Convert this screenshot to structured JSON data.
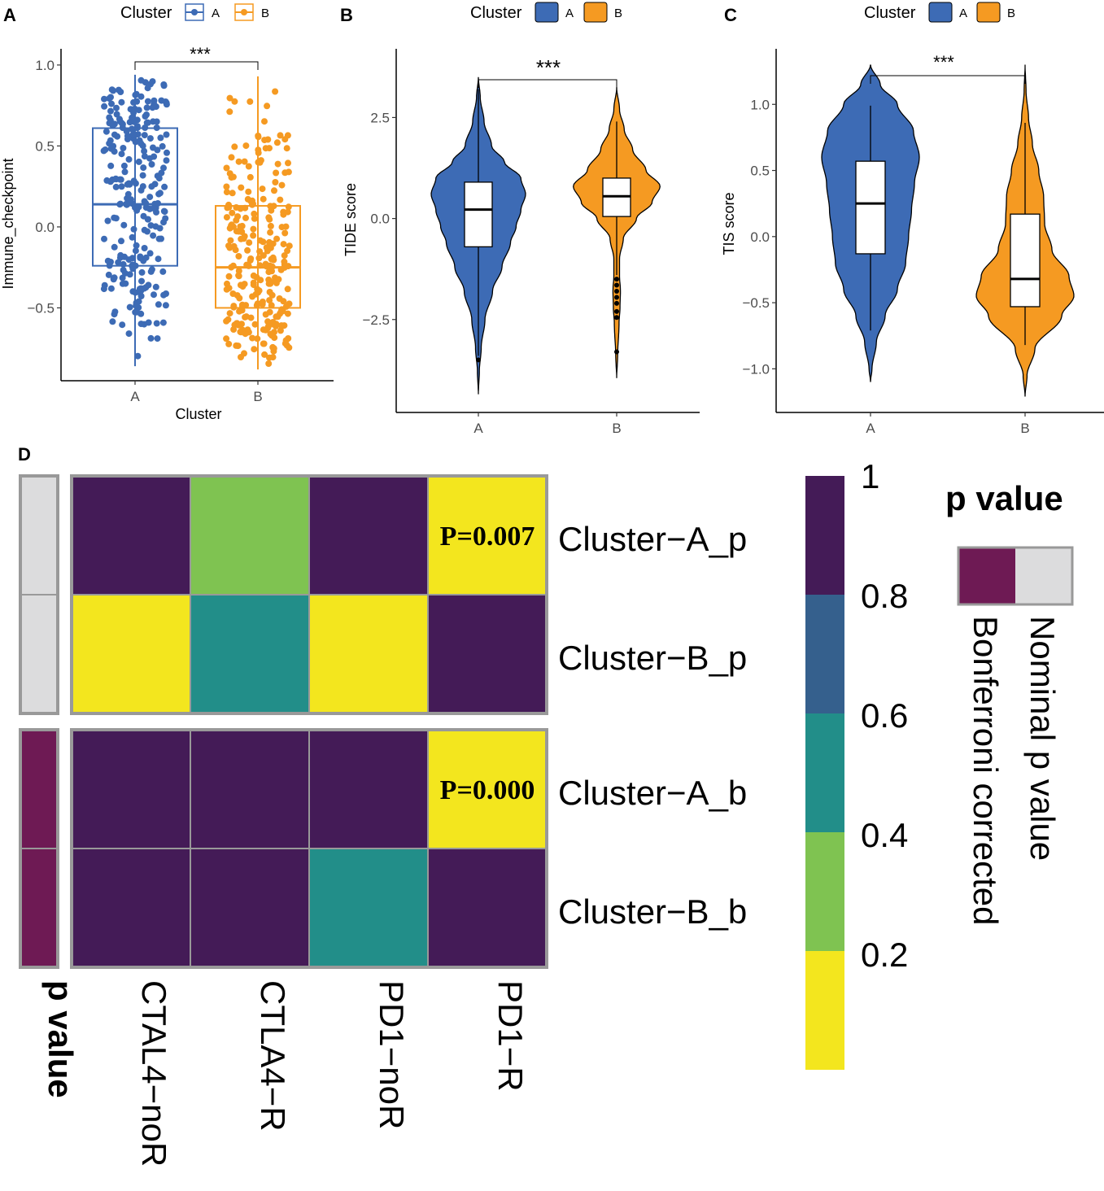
{
  "colors": {
    "clusterA": "#3d6bb5",
    "clusterB": "#f59a22",
    "viridis": [
      "#f3e61e",
      "#7fc351",
      "#228e89",
      "#35608d",
      "#441b57"
    ],
    "bonferroni": "#6e1a54",
    "nominal": "#dcdcdd",
    "frame": "#999999"
  },
  "panels": {
    "A": {
      "label": "A",
      "legend": {
        "title": "Cluster",
        "items": [
          "A",
          "B"
        ]
      },
      "significance": "***",
      "chart_data": {
        "type": "boxplot+jitter",
        "xlabel": "Cluster",
        "ylabel": "Immune_checkpoint",
        "categories": [
          "A",
          "B"
        ],
        "ylim": [
          -0.95,
          1.1
        ],
        "yticks": [
          -0.5,
          0.0,
          0.5,
          1.0
        ],
        "ytick_labels": [
          "−0.5",
          "0.0",
          "0.5",
          "1.0"
        ],
        "boxes": [
          {
            "q1": -0.24,
            "median": 0.14,
            "q3": 0.61,
            "whisker_low": -0.86,
            "whisker_high": 0.94,
            "point_range": [
              -0.88,
              0.95
            ]
          },
          {
            "q1": -0.5,
            "median": -0.25,
            "q3": 0.13,
            "whisker_low": -0.88,
            "whisker_high": 0.93,
            "point_range": [
              -0.9,
              0.95
            ]
          }
        ]
      }
    },
    "B": {
      "label": "B",
      "legend": {
        "title": "Cluster",
        "items": [
          "A",
          "B"
        ]
      },
      "significance": "***",
      "chart_data": {
        "type": "violin+boxplot",
        "xlabel": "",
        "ylabel": "TIDE score",
        "categories": [
          "A",
          "B"
        ],
        "ylim": [
          -4.8,
          4.2
        ],
        "yticks": [
          -2.5,
          0.0,
          2.5
        ],
        "ytick_labels": [
          "−2.5",
          "0.0",
          "2.5"
        ],
        "violins": [
          {
            "min": -4.35,
            "max": 3.5,
            "q1": -0.7,
            "median": 0.22,
            "q3": 0.9,
            "whisker_low": -3.4,
            "whisker_high": 3.2,
            "outliers": [
              -3.5
            ],
            "density": [
              [
                -4.35,
                0
              ],
              [
                -3.8,
                0.02
              ],
              [
                -3.2,
                0.06
              ],
              [
                -2.5,
                0.14
              ],
              [
                -1.8,
                0.3
              ],
              [
                -1.2,
                0.5
              ],
              [
                -0.6,
                0.68
              ],
              [
                -0.2,
                0.8
              ],
              [
                0.2,
                0.9
              ],
              [
                0.6,
                1
              ],
              [
                1.0,
                0.9
              ],
              [
                1.4,
                0.55
              ],
              [
                1.8,
                0.28
              ],
              [
                2.4,
                0.12
              ],
              [
                3.0,
                0.04
              ],
              [
                3.5,
                0
              ]
            ]
          },
          {
            "min": -3.95,
            "max": 3.25,
            "q1": 0.05,
            "median": 0.55,
            "q3": 1.0,
            "whisker_low": -1.4,
            "whisker_high": 2.4,
            "outliers": [
              -1.5,
              -1.65,
              -1.8,
              -1.95,
              -2.1,
              -2.3,
              -2.45,
              -3.3
            ],
            "density": [
              [
                -3.95,
                0
              ],
              [
                -3.4,
                0.02
              ],
              [
                -2.6,
                0.05
              ],
              [
                -2.2,
                0.07
              ],
              [
                -1.8,
                0.08
              ],
              [
                -1.4,
                0.06
              ],
              [
                -1.0,
                0.06
              ],
              [
                -0.5,
                0.14
              ],
              [
                0,
                0.42
              ],
              [
                0.4,
                0.75
              ],
              [
                0.8,
                0.92
              ],
              [
                1.2,
                0.62
              ],
              [
                1.7,
                0.34
              ],
              [
                2.2,
                0.16
              ],
              [
                2.7,
                0.06
              ],
              [
                3.25,
                0
              ]
            ]
          }
        ]
      }
    },
    "C": {
      "label": "C",
      "legend": {
        "title": "Cluster",
        "items": [
          "A",
          "B"
        ]
      },
      "significance": "***",
      "chart_data": {
        "type": "violin+boxplot",
        "xlabel": "",
        "ylabel": "TIS score",
        "categories": [
          "A",
          "B"
        ],
        "ylim": [
          -1.33,
          1.42
        ],
        "yticks": [
          -1.0,
          -0.5,
          0.0,
          0.5,
          1.0
        ],
        "ytick_labels": [
          "−1.0",
          "−0.5",
          "0.0",
          "0.5",
          "1.0"
        ],
        "violins": [
          {
            "min": -1.1,
            "max": 1.3,
            "q1": -0.13,
            "median": 0.25,
            "q3": 0.57,
            "whisker_low": -0.71,
            "whisker_high": 0.99,
            "density": [
              [
                -1.1,
                0
              ],
              [
                -1.0,
                0.03
              ],
              [
                -0.8,
                0.12
              ],
              [
                -0.6,
                0.3
              ],
              [
                -0.4,
                0.55
              ],
              [
                -0.2,
                0.72
              ],
              [
                0,
                0.78
              ],
              [
                0.2,
                0.84
              ],
              [
                0.4,
                0.9
              ],
              [
                0.6,
                1
              ],
              [
                0.8,
                0.88
              ],
              [
                1.0,
                0.55
              ],
              [
                1.15,
                0.2
              ],
              [
                1.3,
                0
              ]
            ]
          },
          {
            "min": -1.21,
            "max": 1.3,
            "q1": -0.53,
            "median": -0.32,
            "q3": 0.17,
            "whisker_low": -0.82,
            "whisker_high": 0.86,
            "density": [
              [
                -1.21,
                0
              ],
              [
                -1.05,
                0.04
              ],
              [
                -0.85,
                0.2
              ],
              [
                -0.6,
                0.75
              ],
              [
                -0.45,
                1
              ],
              [
                -0.3,
                0.9
              ],
              [
                -0.1,
                0.55
              ],
              [
                0.1,
                0.4
              ],
              [
                0.3,
                0.38
              ],
              [
                0.5,
                0.28
              ],
              [
                0.7,
                0.15
              ],
              [
                0.9,
                0.07
              ],
              [
                1.1,
                0.02
              ],
              [
                1.3,
                0
              ]
            ]
          }
        ]
      }
    },
    "D": {
      "label": "D",
      "chart_data": {
        "type": "heatmap",
        "columns": [
          "CTAL4−noR",
          "CTLA4−R",
          "PD1−noR",
          "PD1−R"
        ],
        "rows": [
          "Cluster−A_p",
          "Cluster−B_p",
          "Cluster−A_b",
          "Cluster−B_b"
        ],
        "values": [
          [
            1.0,
            0.3,
            1.0,
            0.007
          ],
          [
            0.1,
            0.5,
            0.1,
            1.0
          ],
          [
            1.0,
            1.0,
            1.0,
            0.0
          ],
          [
            1.0,
            1.0,
            0.5,
            1.0
          ]
        ],
        "annotations": [
          {
            "row": 0,
            "col": 3,
            "text": "P=0.007"
          },
          {
            "row": 2,
            "col": 3,
            "text": "P=0.000"
          }
        ],
        "row_annotation": [
          "Nominal p value",
          "Nominal p value",
          "Bonferroni corrected",
          "Bonferroni corrected"
        ],
        "row_annotation_title": "p value",
        "colorbar": {
          "tick_labels": [
            "1",
            "0.8",
            "0.6",
            "0.4",
            "0.2"
          ]
        },
        "legend": {
          "title": "p value",
          "items": [
            "Bonferroni corrected",
            "Nominal p value"
          ]
        }
      }
    }
  }
}
